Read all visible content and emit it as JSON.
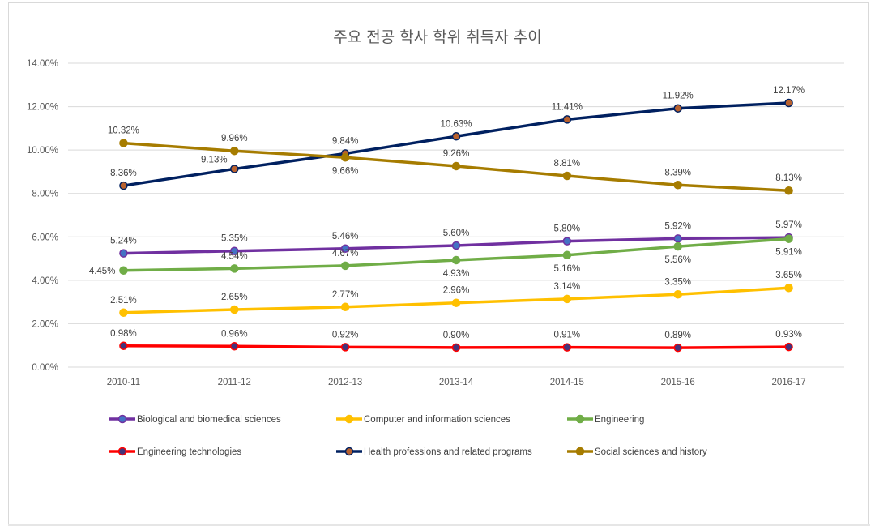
{
  "chart_data": {
    "type": "line",
    "title": "주요 전공 학사 학위 취득자 추이",
    "xlabel": "",
    "ylabel": "",
    "categories": [
      "2010-11",
      "2011-12",
      "2012-13",
      "2013-14",
      "2014-15",
      "2015-16",
      "2016-17"
    ],
    "ylim": [
      0,
      14
    ],
    "yticks": [
      "0.00%",
      "2.00%",
      "4.00%",
      "6.00%",
      "8.00%",
      "10.00%",
      "12.00%",
      "14.00%"
    ],
    "ytick_values": [
      0,
      2,
      4,
      6,
      8,
      10,
      12,
      14
    ],
    "grid": true,
    "legend_position": "bottom",
    "series": [
      {
        "name": "Biological and biomedical sciences",
        "color": "#7030A0",
        "marker_fill": "#4472C4",
        "values": [
          5.24,
          5.35,
          5.46,
          5.6,
          5.8,
          5.92,
          5.97
        ],
        "labels": [
          "5.24%",
          "5.35%",
          "5.46%",
          "5.60%",
          "5.80%",
          "5.92%",
          "5.97%"
        ],
        "label_pos": [
          "above",
          "above",
          "above",
          "above",
          "above",
          "above",
          "above"
        ]
      },
      {
        "name": "Computer and information sciences",
        "color": "#FFC000",
        "marker_fill": "#FFC000",
        "values": [
          2.51,
          2.65,
          2.77,
          2.96,
          3.14,
          3.35,
          3.65
        ],
        "labels": [
          "2.51%",
          "2.65%",
          "2.77%",
          "2.96%",
          "3.14%",
          "3.35%",
          "3.65%"
        ],
        "label_pos": [
          "above",
          "above",
          "above",
          "above",
          "above",
          "above",
          "above"
        ]
      },
      {
        "name": "Engineering",
        "color": "#70AD47",
        "marker_fill": "#70AD47",
        "values": [
          4.45,
          4.54,
          4.67,
          4.93,
          5.16,
          5.56,
          5.91
        ],
        "labels": [
          "4.45%",
          "4.54%",
          "4.67%",
          "4.93%",
          "5.16%",
          "5.56%",
          "5.91%"
        ],
        "label_pos": [
          "left",
          "above",
          "above",
          "below",
          "below",
          "below",
          "below"
        ]
      },
      {
        "name": "Engineering technologies",
        "color": "#FF0000",
        "marker_fill": "#44337A",
        "values": [
          0.98,
          0.96,
          0.92,
          0.9,
          0.91,
          0.89,
          0.93
        ],
        "labels": [
          "0.98%",
          "0.96%",
          "0.92%",
          "0.90%",
          "0.91%",
          "0.89%",
          "0.93%"
        ],
        "label_pos": [
          "above",
          "above",
          "above",
          "above",
          "above",
          "above",
          "above"
        ]
      },
      {
        "name": "Health professions and related programs",
        "color": "#002060",
        "marker_fill": "#B8612E",
        "values": [
          8.36,
          9.13,
          9.84,
          10.63,
          11.41,
          11.92,
          12.17
        ],
        "labels": [
          "8.36%",
          "9.13%",
          "9.84%",
          "10.63%",
          "11.41%",
          "11.92%",
          "12.17%"
        ],
        "label_pos": [
          "above",
          "above-left",
          "above",
          "above",
          "above",
          "above",
          "above"
        ]
      },
      {
        "name": "Social sciences and history",
        "color": "#A67C00",
        "marker_fill": "#A67C00",
        "values": [
          10.32,
          9.96,
          9.66,
          9.26,
          8.81,
          8.39,
          8.13
        ],
        "labels": [
          "10.32%",
          "9.96%",
          "9.66%",
          "9.26%",
          "8.81%",
          "8.39%",
          "8.13%"
        ],
        "label_pos": [
          "above",
          "above",
          "below",
          "above",
          "above",
          "above",
          "above"
        ]
      }
    ]
  }
}
